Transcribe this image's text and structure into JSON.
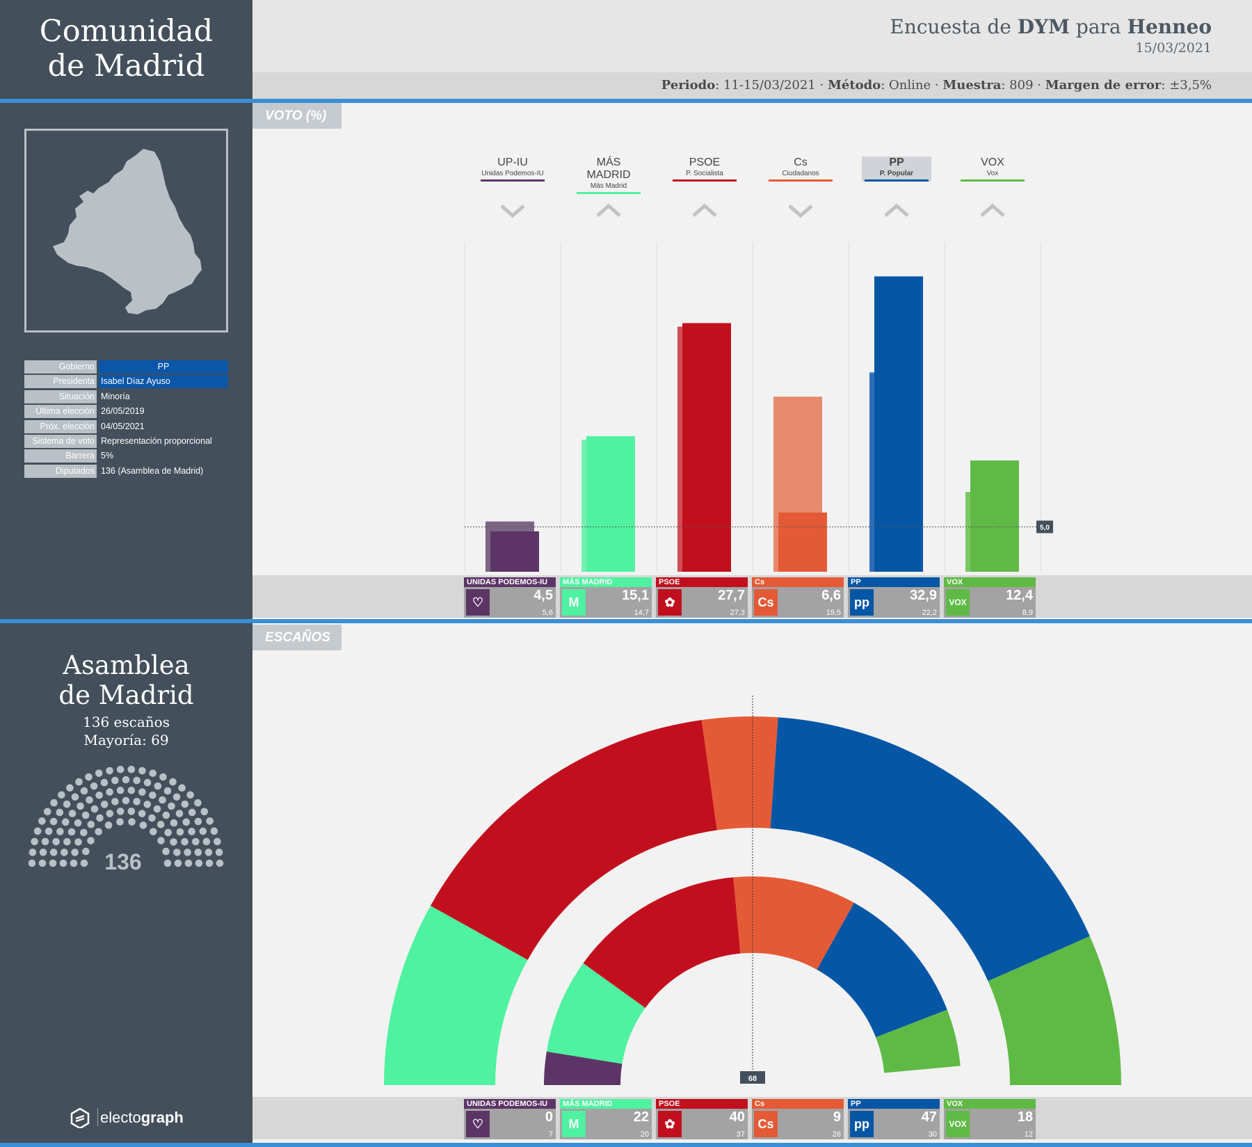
{
  "region": {
    "title_line1": "Comunidad",
    "title_line2": "de Madrid"
  },
  "header": {
    "title_pre": "Encuesta de ",
    "pollster": "DYM",
    "title_mid": " para ",
    "client": "Henneo",
    "date": "15/03/2021",
    "meta": {
      "periodo_label": "Periodo",
      "periodo": "11-15/03/2021",
      "metodo_label": "Método",
      "metodo": "Online",
      "muestra_label": "Muestra",
      "muestra": "809",
      "margen_label": "Margen de error",
      "margen": "±3,5%"
    }
  },
  "info": [
    {
      "label": "Gobierno",
      "value": "PP",
      "highlight": "#0a56a8",
      "center": true
    },
    {
      "label": "Presidenta",
      "value": "Isabel Díaz Ayuso",
      "highlight": "#0a56a8"
    },
    {
      "label": "Situación",
      "value": "Minoría"
    },
    {
      "label": "Última elección",
      "value": "26/05/2019"
    },
    {
      "label": "Próx. elección",
      "value": "04/05/2021"
    },
    {
      "label": "Sistema de voto",
      "value": "Representación proporcional"
    },
    {
      "label": "Barrera",
      "value": "5%"
    },
    {
      "label": "Diputados",
      "value": "136 (Asamblea de Madrid)"
    }
  ],
  "sections": {
    "vote": "VOTO (%)",
    "seats": "ESCAÑOS"
  },
  "assembly": {
    "line1": "Asamblea",
    "line2": "de Madrid",
    "seats_text": "136 escaños",
    "majority_text": "Mayoría: 69",
    "total": "136"
  },
  "chart_data": [
    {
      "type": "bar",
      "title": "VOTO (%)",
      "categories": [
        "UP-IU",
        "MÁS MADRID",
        "PSOE",
        "Cs",
        "PP",
        "VOX"
      ],
      "series": [
        {
          "name": "",
          "values": [
            4.5,
            15.1,
            27.7,
            6.6,
            32.9,
            12.4
          ]
        },
        {
          "name": "",
          "values": [
            5.6,
            14.7,
            27.3,
            19.5,
            22.2,
            8.9
          ]
        }
      ],
      "threshold": {
        "value": 5,
        "label": "5,0"
      },
      "ylim": [
        0,
        35
      ]
    },
    {
      "type": "pie",
      "title": "ESCAÑOS",
      "categories": [
        "UNIDAS PODEMOS-IU",
        "MÁS MADRID",
        "PSOE",
        "Cs",
        "PP",
        "VOX"
      ],
      "series": [
        {
          "name": "",
          "values": [
            0,
            22,
            40,
            9,
            47,
            18
          ]
        },
        {
          "name": "",
          "values": [
            7,
            20,
            37,
            26,
            30,
            12
          ]
        }
      ],
      "total": 136,
      "majority_marker": "68"
    }
  ],
  "parties": [
    {
      "abbr": "UP-IU",
      "name": "Unidas Podemos-IU",
      "box_label": "UNIDAS PODEMOS-IU",
      "color": "#5c3566",
      "light": "#7d6586",
      "trend": "down",
      "vote": "4,5",
      "vote_prev": "5,6",
      "seats": "0",
      "seats_prev": "7",
      "icon": "heart-icon"
    },
    {
      "abbr": "MÁS MADRID",
      "name": "Más Madrid",
      "box_label": "MÁS MADRID",
      "color": "#4ff2a0",
      "light": "#74f0b0",
      "trend": "up",
      "vote": "15,1",
      "vote_prev": "14,7",
      "seats": "22",
      "seats_prev": "20",
      "icon": "m-icon"
    },
    {
      "abbr": "PSOE",
      "name": "P. Socialista",
      "box_label": "PSOE",
      "color": "#c20f1e",
      "light": "#d14d55",
      "trend": "up",
      "vote": "27,7",
      "vote_prev": "27,3",
      "seats": "40",
      "seats_prev": "37",
      "icon": "rose-icon"
    },
    {
      "abbr": "Cs",
      "name": "Ciudadanos",
      "box_label": "Cs",
      "color": "#e55a36",
      "light": "#e78a6e",
      "trend": "down",
      "vote": "6,6",
      "vote_prev": "19,5",
      "seats": "9",
      "seats_prev": "26",
      "icon": "cs-icon"
    },
    {
      "abbr": "PP",
      "name": "P. Popular",
      "box_label": "PP",
      "color": "#0656a6",
      "light": "#2f6fb8",
      "trend": "up",
      "vote": "32,9",
      "vote_prev": "22,2",
      "seats": "47",
      "seats_prev": "30",
      "icon": "pp-icon",
      "winner": true
    },
    {
      "abbr": "VOX",
      "name": "Vox",
      "box_label": "VOX",
      "color": "#5fba45",
      "light": "#7cc765",
      "trend": "up",
      "vote": "12,4",
      "vote_prev": "8,9",
      "seats": "18",
      "seats_prev": "12",
      "icon": "vox-icon"
    }
  ],
  "brand": {
    "name_light": "electo",
    "name_bold": "graph"
  }
}
